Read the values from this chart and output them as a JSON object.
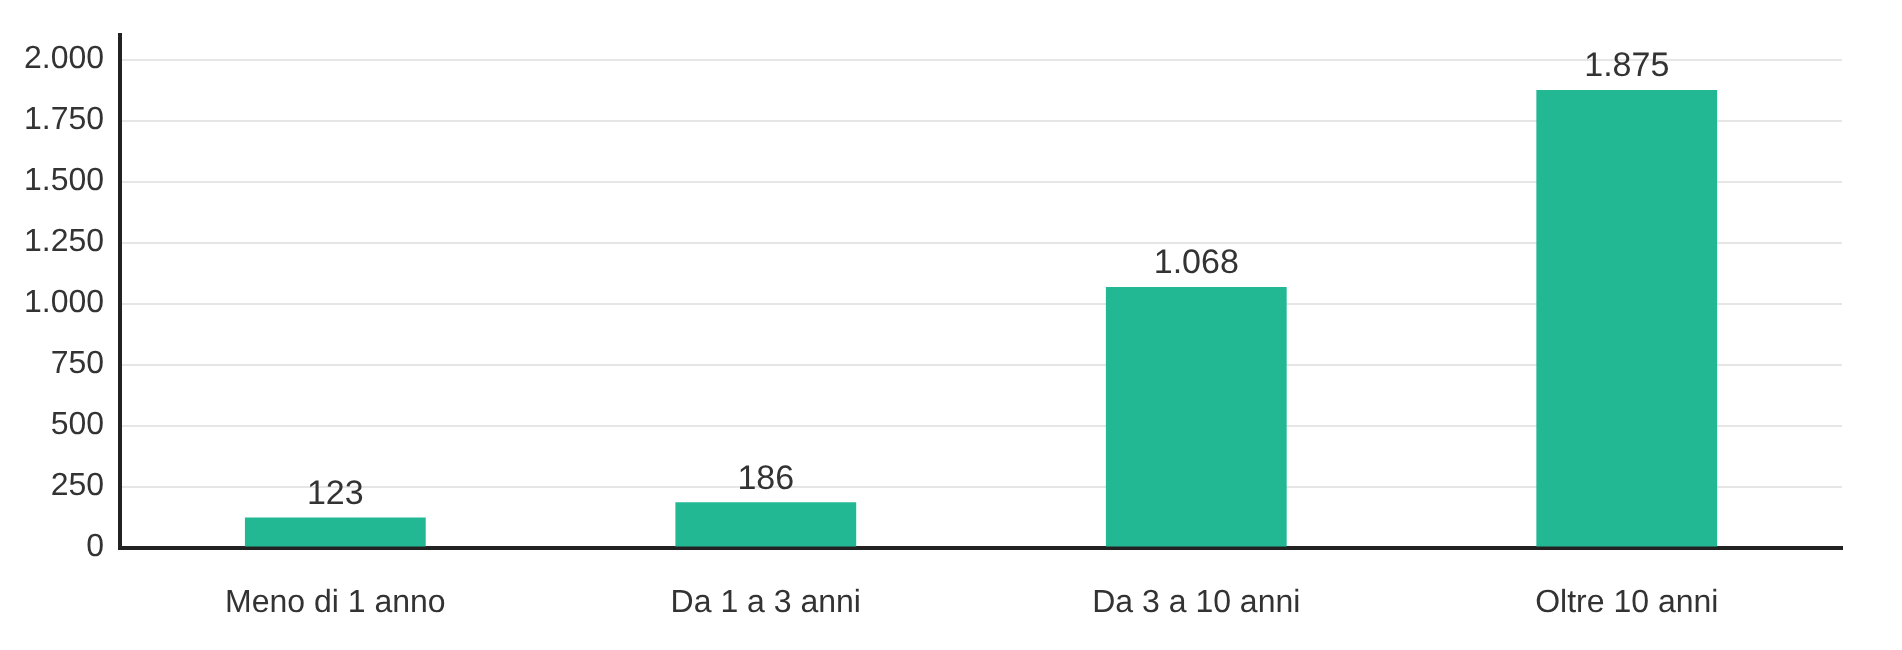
{
  "chart_data": {
    "type": "bar",
    "categories": [
      "Meno di 1 anno",
      "Da 1 a 3 anni",
      "Da 3 a 10 anni",
      "Oltre 10 anni"
    ],
    "values": [
      123,
      186,
      1068,
      1875
    ],
    "value_labels": [
      "123",
      "186",
      "1.068",
      "1.875"
    ],
    "color": "#22b894",
    "ylim": [
      0,
      2100
    ],
    "yticks": [
      {
        "value": 0,
        "label": "0"
      },
      {
        "value": 250,
        "label": "250"
      },
      {
        "value": 500,
        "label": "500"
      },
      {
        "value": 750,
        "label": "750"
      },
      {
        "value": 1000,
        "label": "1.000"
      },
      {
        "value": 1250,
        "label": "1.250"
      },
      {
        "value": 1500,
        "label": "1.500"
      },
      {
        "value": 1750,
        "label": "1.750"
      },
      {
        "value": 2000,
        "label": "2.000"
      }
    ],
    "grid": "y",
    "legend": false
  }
}
